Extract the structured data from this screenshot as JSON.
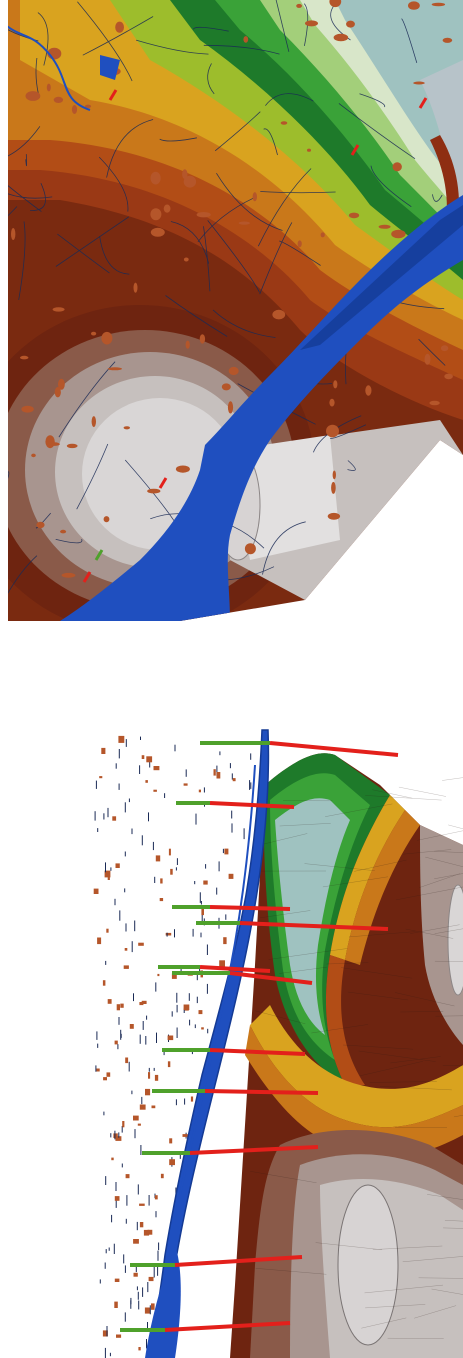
{
  "figure": {
    "panels": [
      {
        "id": "top",
        "view": "plan"
      },
      {
        "id": "bottom",
        "view": "oblique"
      }
    ]
  },
  "colors": {
    "water": "#1f4fbf",
    "urban": "#b5562a",
    "roads": "#1a2a55",
    "marker_short": "#4fa12b",
    "marker_long": "#e3201b",
    "surface_bands": [
      "#b7c3c9",
      "#9fc2c0",
      "#d8e6c9",
      "#a3cf7a",
      "#3aa238",
      "#1e7a2a",
      "#9dbd2c",
      "#d9a31f",
      "#c9781a",
      "#b24d16",
      "#8e2e12",
      "#6e2410",
      "#8a5a49",
      "#a8958f",
      "#c6c0be",
      "#d9d6d6"
    ]
  },
  "markers": {
    "top_panel_count": 6,
    "bottom_panel_count": 13
  }
}
